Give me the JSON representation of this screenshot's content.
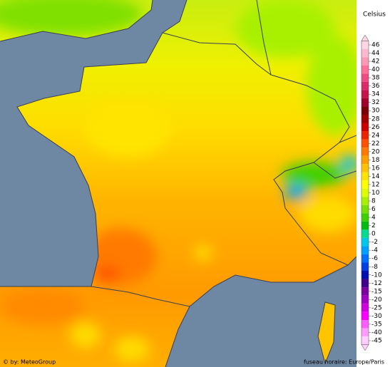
{
  "legend": {
    "title": "Celsius",
    "ticks": [
      46,
      44,
      42,
      40,
      38,
      36,
      34,
      32,
      30,
      28,
      26,
      24,
      22,
      20,
      18,
      16,
      14,
      12,
      10,
      8,
      6,
      4,
      2,
      0,
      -2,
      -4,
      -6,
      -8,
      -10,
      -12,
      -15,
      -20,
      -25,
      -30,
      -35,
      -40,
      -45
    ],
    "colors": [
      "#ffd6e6",
      "#ffb8cf",
      "#ff98b6",
      "#ff6f98",
      "#f04a82",
      "#dc2a66",
      "#c4124a",
      "#a0002a",
      "#7c0008",
      "#a00000",
      "#cc0000",
      "#ec2400",
      "#ff5200",
      "#ff7a00",
      "#ff9e00",
      "#ffc200",
      "#ffe400",
      "#ffff00",
      "#dcff00",
      "#aaf000",
      "#78e000",
      "#3cd000",
      "#00bc10",
      "#00dc90",
      "#00c8e8",
      "#00a0ff",
      "#0070ff",
      "#0040e0",
      "#0010b0",
      "#40008c",
      "#7c00a0",
      "#a400c4",
      "#d000e0",
      "#ff00ff",
      "#ff5cff",
      "#ff9cff",
      "#ffd0ff"
    ]
  },
  "credit": "© by: MeteoGroup",
  "timezone": "fuseau horaire: Europe/Paris"
}
